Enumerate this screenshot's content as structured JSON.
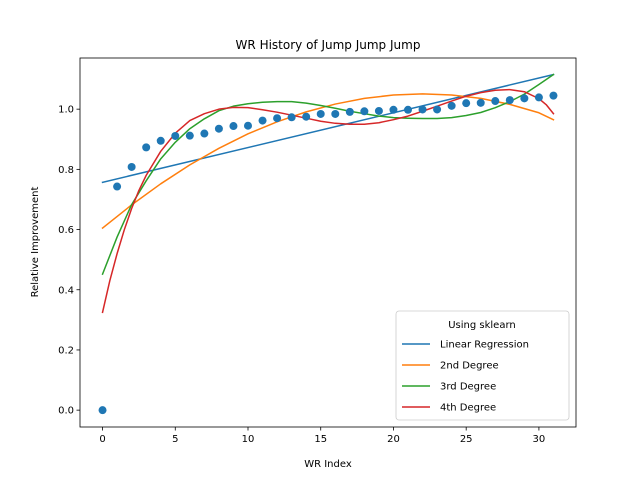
{
  "chart_data": {
    "type": "scatter",
    "title": "WR History of Jump Jump Jump",
    "xlabel": "WR Index",
    "ylabel": "Relative Improvement",
    "xlim": [
      -1.55,
      32.55
    ],
    "ylim": [
      -0.056,
      1.17
    ],
    "xticks": [
      0,
      5,
      10,
      15,
      20,
      25,
      30
    ],
    "yticks": [
      0.0,
      0.2,
      0.4,
      0.6,
      0.8,
      1.0
    ],
    "grid": false,
    "legend": {
      "title": "Using sklearn",
      "placement": "lower-right"
    },
    "points": {
      "color": "#1f77b4",
      "x": [
        0,
        1,
        2,
        3,
        4,
        5,
        6,
        7,
        8,
        9,
        10,
        11,
        12,
        13,
        14,
        15,
        16,
        17,
        18,
        19,
        20,
        21,
        22,
        23,
        24,
        25,
        26,
        27,
        28,
        29,
        30,
        31
      ],
      "y": [
        0.0,
        0.743,
        0.808,
        0.873,
        0.895,
        0.911,
        0.912,
        0.919,
        0.935,
        0.944,
        0.945,
        0.962,
        0.97,
        0.973,
        0.975,
        0.984,
        0.984,
        0.991,
        0.993,
        0.994,
        0.998,
        0.998,
        0.999,
        0.999,
        1.011,
        1.02,
        1.021,
        1.027,
        1.03,
        1.036,
        1.039,
        1.045
      ]
    },
    "series": [
      {
        "name": "Linear Regression",
        "color": "#1f77b4",
        "x": [
          0,
          31
        ],
        "y": [
          0.757,
          1.115
        ]
      },
      {
        "name": "2nd Degree",
        "color": "#ff7f0e",
        "x": [
          0,
          2,
          4,
          6,
          8,
          10,
          12,
          14,
          16,
          18,
          20,
          22,
          24,
          26,
          28,
          30,
          31
        ],
        "y": [
          0.605,
          0.682,
          0.752,
          0.815,
          0.87,
          0.918,
          0.958,
          0.991,
          1.017,
          1.036,
          1.047,
          1.051,
          1.047,
          1.036,
          1.016,
          0.988,
          0.965
        ]
      },
      {
        "name": "3rd Degree",
        "color": "#2ca02c",
        "x": [
          0,
          1,
          2,
          3,
          4,
          5,
          6,
          7,
          8,
          9,
          10,
          11,
          12,
          13,
          14,
          15,
          16,
          17,
          18,
          19,
          20,
          21,
          22,
          23,
          24,
          25,
          26,
          27,
          28,
          29,
          30,
          31
        ],
        "y": [
          0.452,
          0.575,
          0.683,
          0.762,
          0.835,
          0.89,
          0.935,
          0.968,
          0.995,
          1.01,
          1.018,
          1.023,
          1.025,
          1.025,
          1.02,
          1.012,
          1.003,
          0.993,
          0.985,
          0.977,
          0.972,
          0.97,
          0.969,
          0.969,
          0.972,
          0.979,
          0.989,
          1.005,
          1.025,
          1.05,
          1.082,
          1.115
        ]
      },
      {
        "name": "4th Degree",
        "color": "#d62728",
        "x": [
          0,
          0.5,
          1,
          1.5,
          2,
          2.5,
          3,
          4,
          5,
          6,
          7,
          8,
          9,
          10,
          11,
          12,
          13,
          14,
          15,
          16,
          17,
          18,
          19,
          20,
          21,
          22,
          23,
          24,
          25,
          26,
          27,
          28,
          29,
          30,
          30.5,
          31
        ],
        "y": [
          0.325,
          0.43,
          0.52,
          0.6,
          0.67,
          0.73,
          0.78,
          0.86,
          0.92,
          0.962,
          0.985,
          1.0,
          1.006,
          1.005,
          0.998,
          0.99,
          0.98,
          0.97,
          0.96,
          0.953,
          0.95,
          0.95,
          0.955,
          0.965,
          0.977,
          0.993,
          1.01,
          1.027,
          1.043,
          1.055,
          1.063,
          1.065,
          1.058,
          1.035,
          1.015,
          0.985
        ]
      }
    ]
  }
}
